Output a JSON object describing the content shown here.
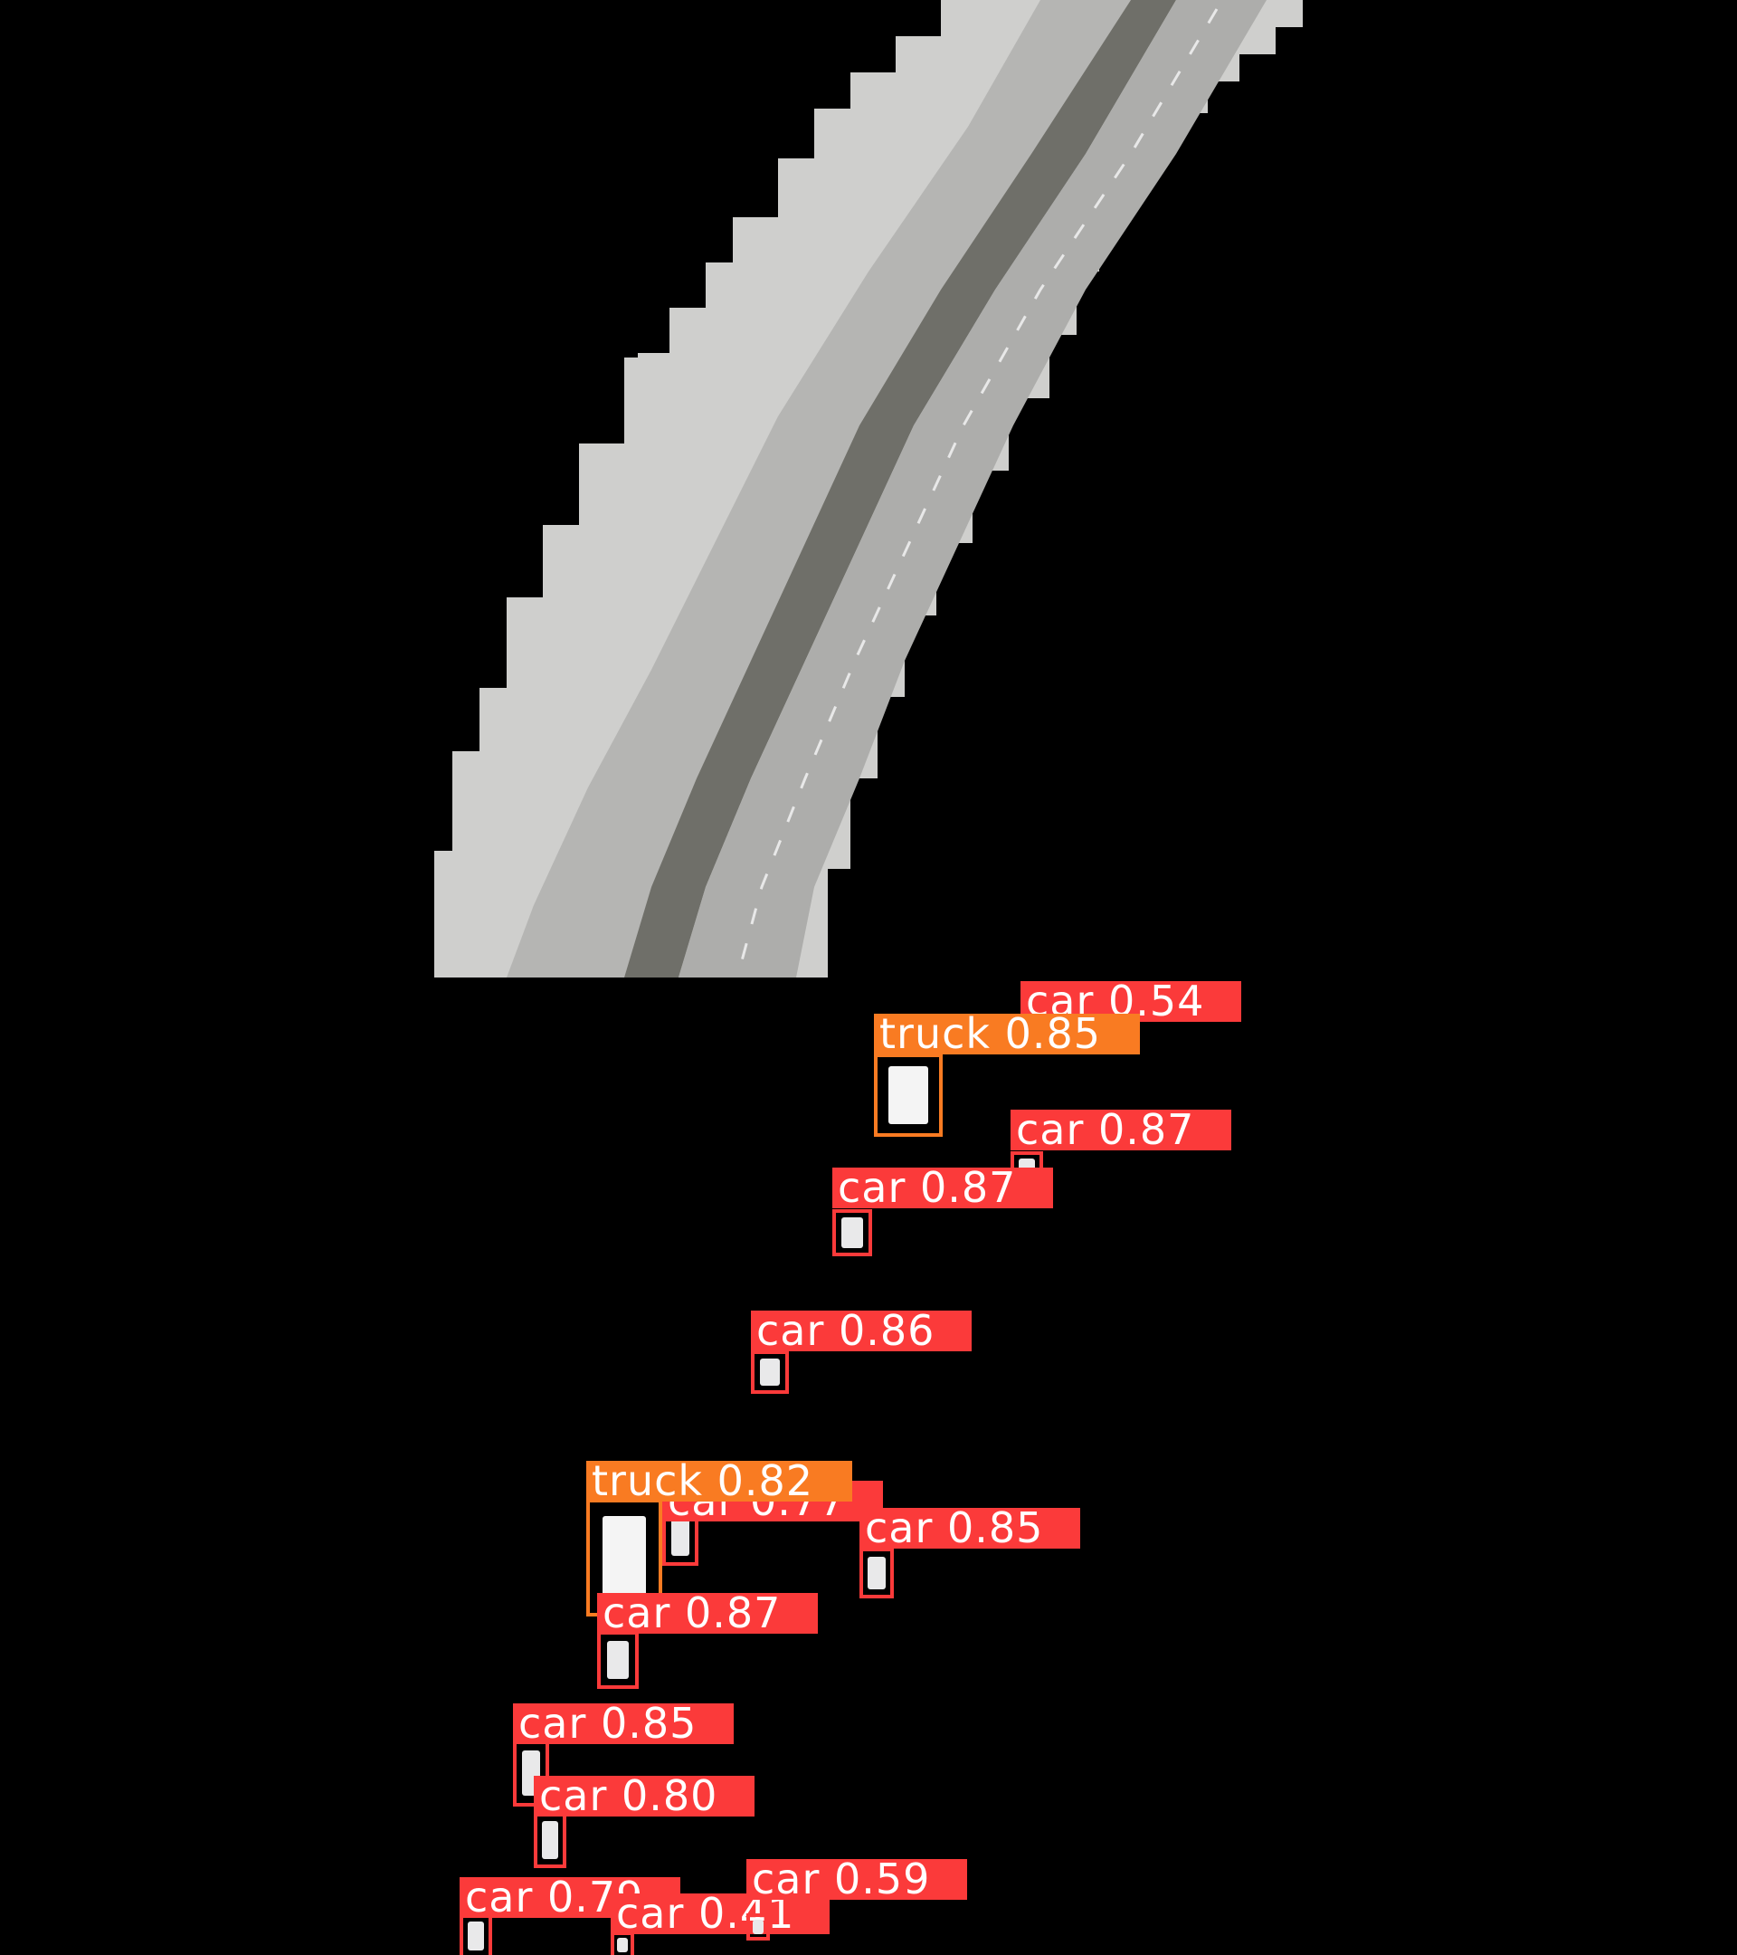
{
  "colors": {
    "background": "#000000",
    "car": "#fb3a3a",
    "truck": "#f97b22",
    "road": "#b9b9b9",
    "sidewalk": "#d4d4d4",
    "median": "#6e6e6a"
  },
  "detections": [
    {
      "label": "car 0.54",
      "class": "car"
    },
    {
      "label": "truck 0.85",
      "class": "truck"
    },
    {
      "label": "car 0.87",
      "class": "car"
    },
    {
      "label": "car 0.87",
      "class": "car"
    },
    {
      "label": "car 0.86",
      "class": "car"
    },
    {
      "label": "car 0.77",
      "class": "car"
    },
    {
      "label": "truck 0.82",
      "class": "truck"
    },
    {
      "label": "car 0.85",
      "class": "car"
    },
    {
      "label": "car 0.87",
      "class": "car"
    },
    {
      "label": "car 0.85",
      "class": "car"
    },
    {
      "label": "car 0.80",
      "class": "car"
    },
    {
      "label": "car 0.79",
      "class": "car"
    },
    {
      "label": "car 0.41",
      "class": "car"
    },
    {
      "label": "car 0.59",
      "class": "car"
    }
  ]
}
